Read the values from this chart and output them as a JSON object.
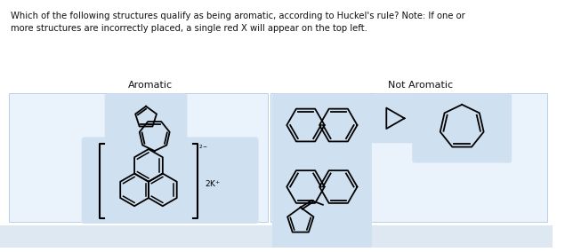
{
  "title_text": "Which of the following structures qualify as being aromatic, according to Huckel's rule? Note: If one or\nmore structures are incorrectly placed, a single red X will appear on the top left.",
  "aromatic_label": "Aromatic",
  "not_aromatic_label": "Not Aromatic",
  "bg_color": "#ffffff",
  "panel_bg": "#cfe0f0",
  "outer_bg": "#eaf2fb",
  "outer_edge": "#b8cfe8",
  "bottom_strip_color": "#dde8f2",
  "text_color": "#111111",
  "figure_width": 6.44,
  "figure_height": 2.84
}
